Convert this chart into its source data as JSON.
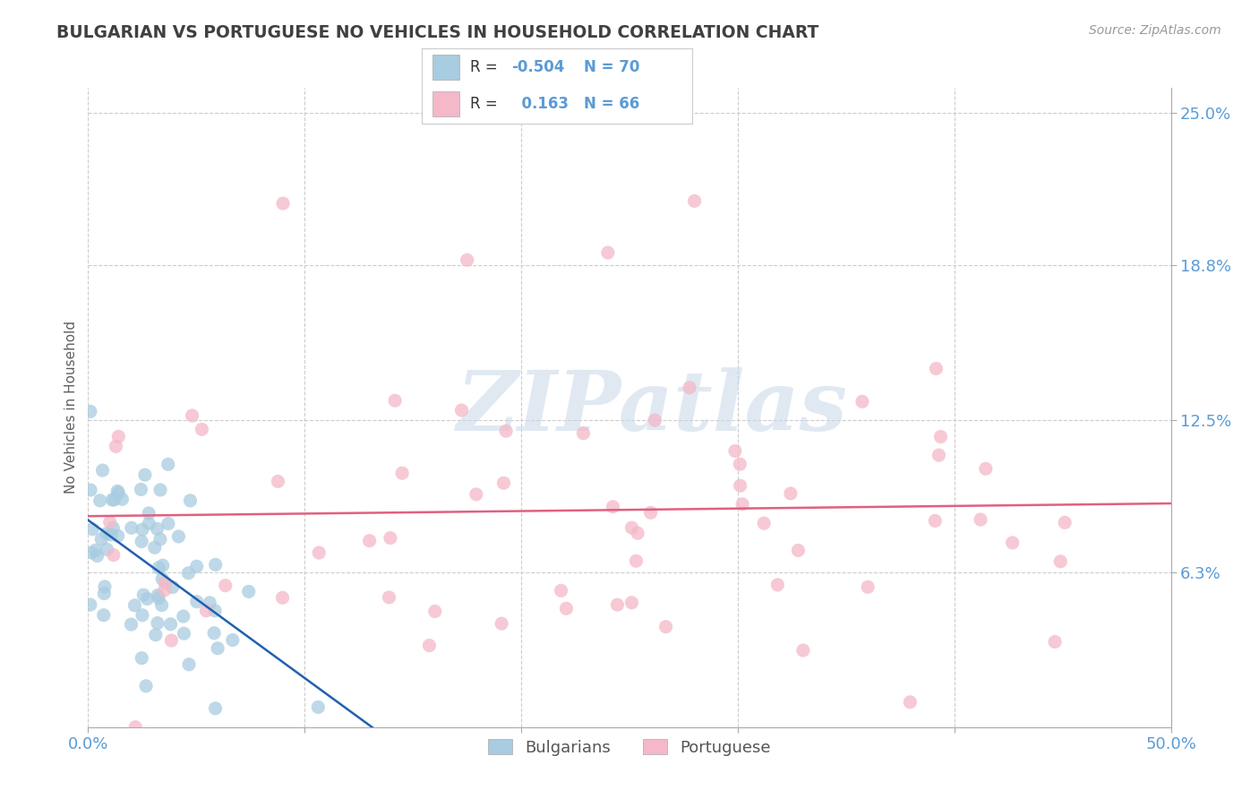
{
  "title": "BULGARIAN VS PORTUGUESE NO VEHICLES IN HOUSEHOLD CORRELATION CHART",
  "source": "Source: ZipAtlas.com",
  "ylabel": "No Vehicles in Household",
  "xlim": [
    0.0,
    0.5
  ],
  "ylim": [
    0.0,
    0.26
  ],
  "xtick_positions": [
    0.0,
    0.1,
    0.2,
    0.3,
    0.4,
    0.5
  ],
  "xticklabels": [
    "0.0%",
    "",
    "",
    "",
    "",
    "50.0%"
  ],
  "ytick_positions": [
    0.063,
    0.125,
    0.188,
    0.25
  ],
  "yticklabels": [
    "6.3%",
    "12.5%",
    "18.8%",
    "25.0%"
  ],
  "bulgarian_color": "#a8cce0",
  "portuguese_color": "#f4b8c8",
  "bulgarian_line_color": "#2060b0",
  "portuguese_line_color": "#e06080",
  "background_color": "#ffffff",
  "grid_color": "#cccccc",
  "title_color": "#404040",
  "axis_label_color": "#606060",
  "tick_label_color": "#5b9bd5",
  "watermark_text": "ZIPatlas",
  "legend_r_color": "#333333",
  "legend_val_color": "#5b9bd5",
  "legend_n_color": "#5b9bd5",
  "bottom_legend_label_color": "#555555"
}
